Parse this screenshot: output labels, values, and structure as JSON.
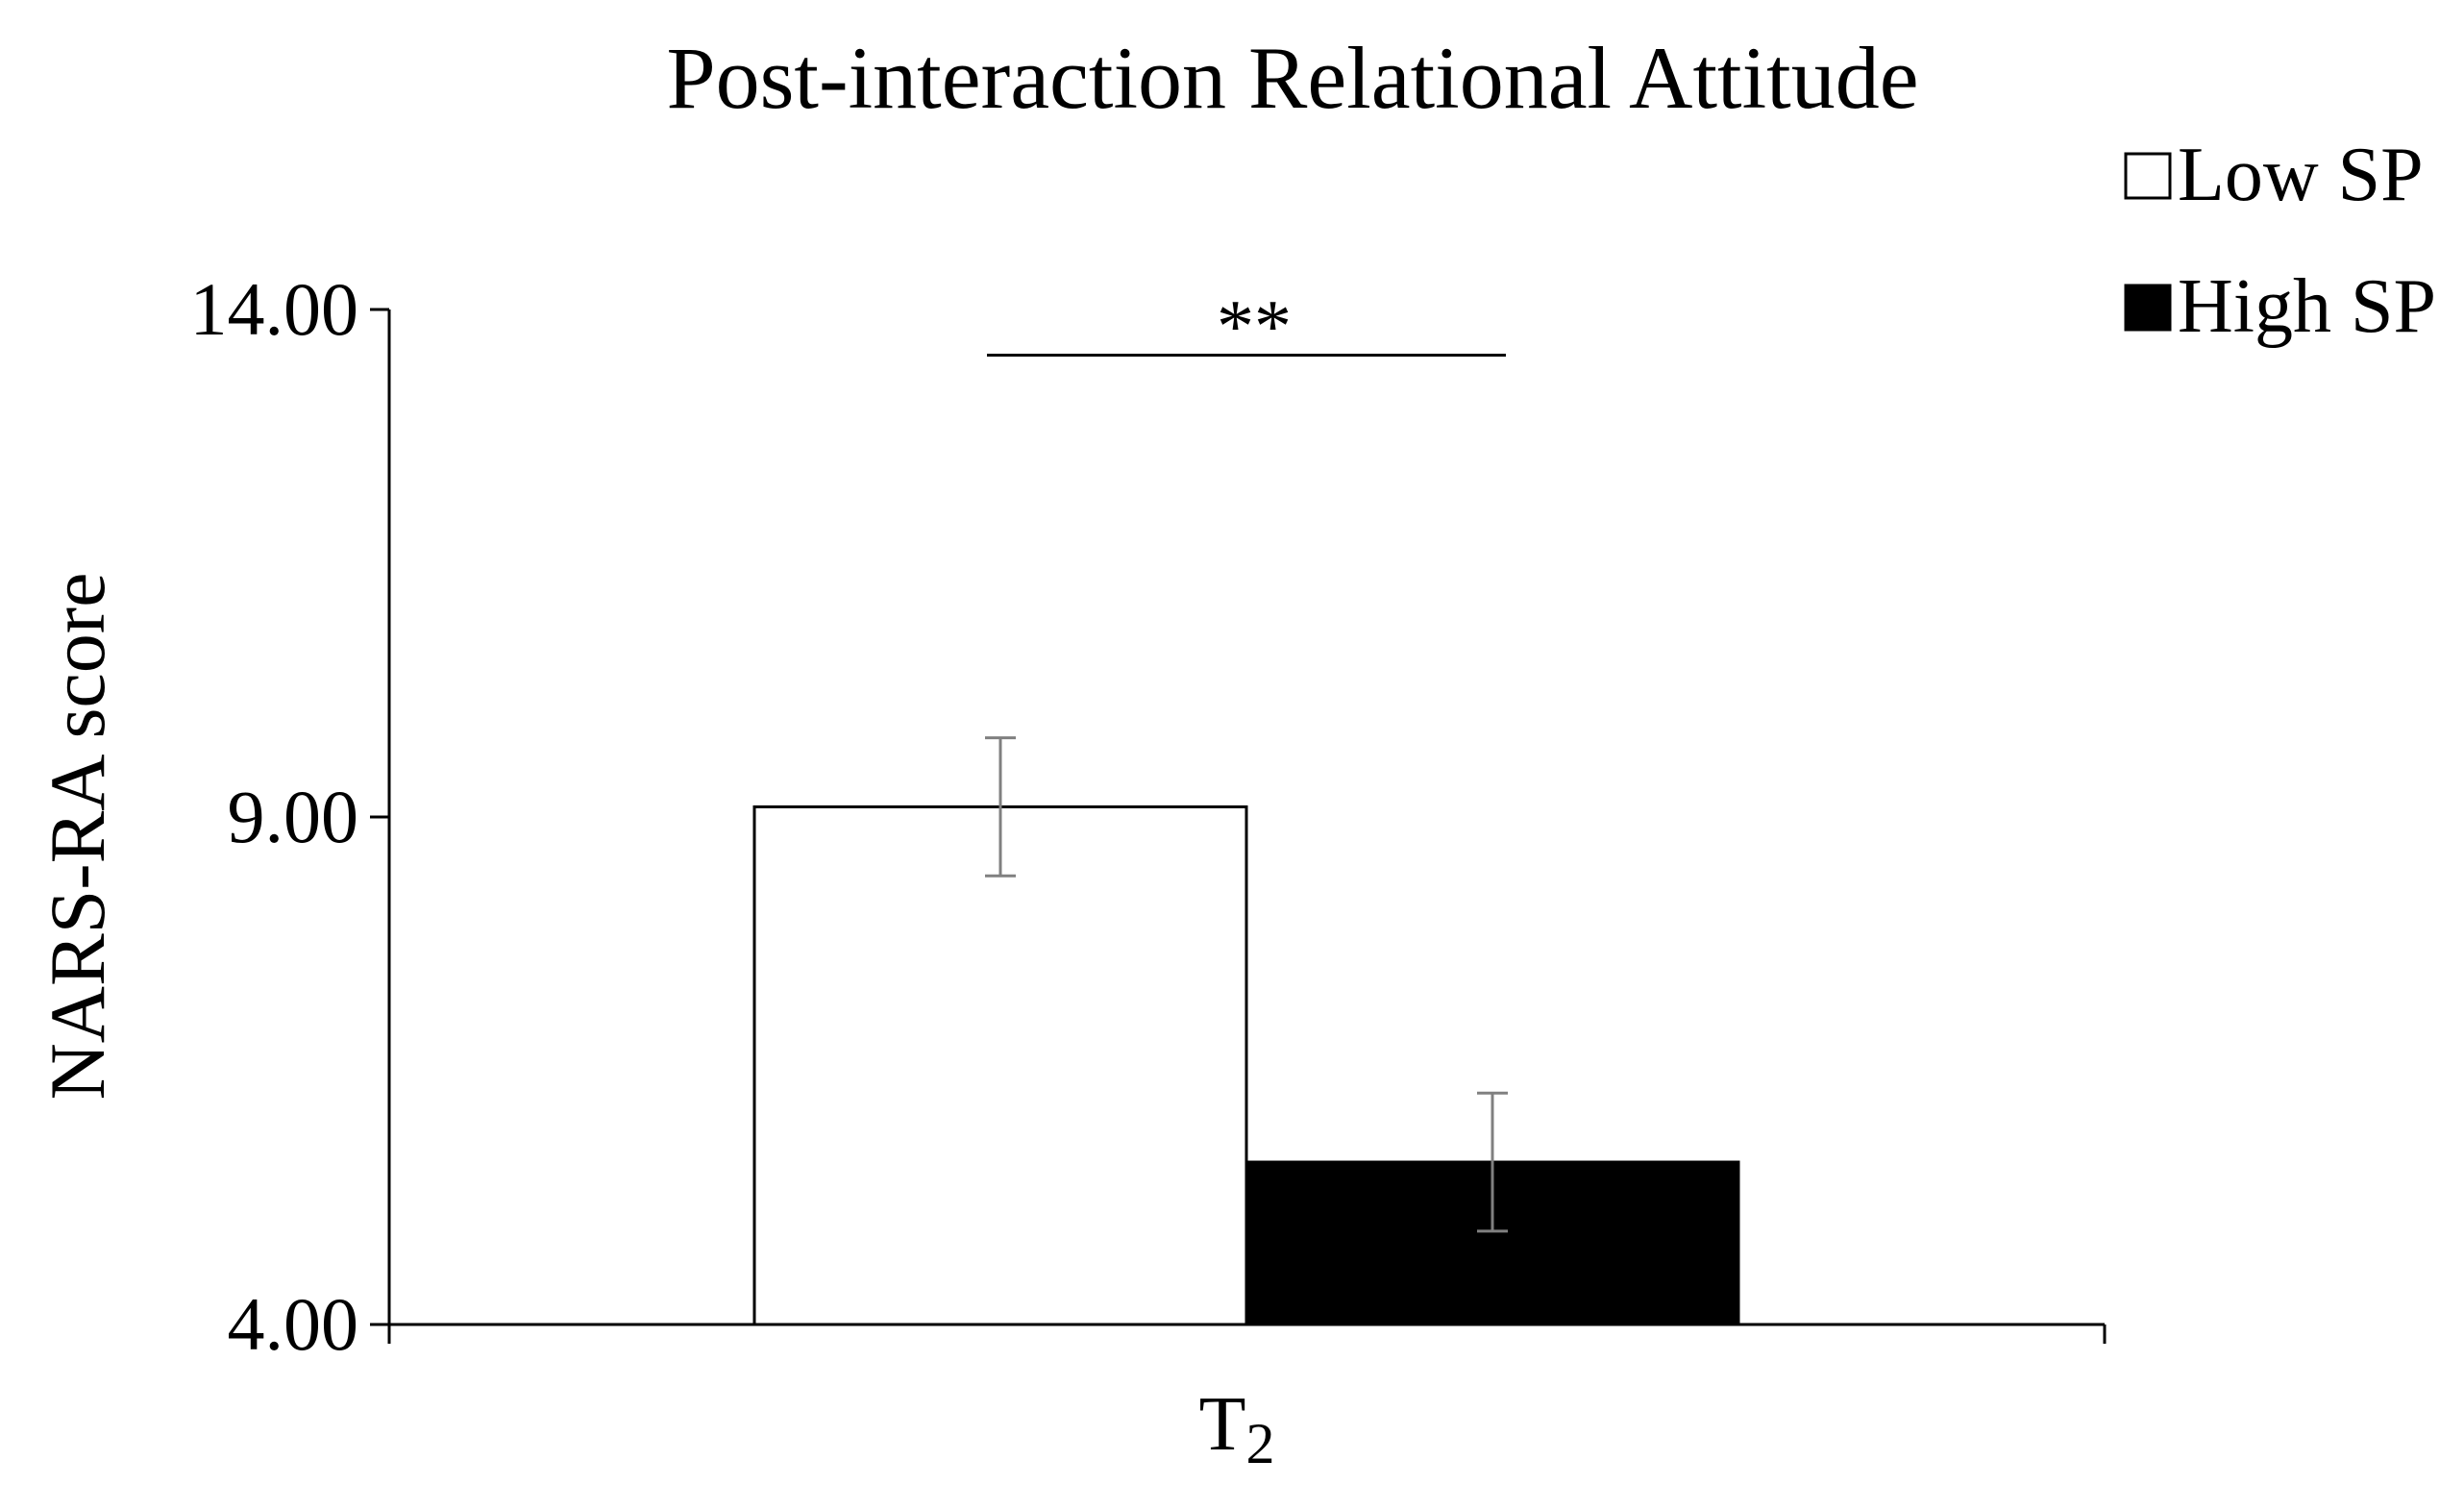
{
  "chart_data": {
    "type": "bar",
    "title": "Post-interaction Relational Attitude",
    "xlabel": "",
    "ylabel": "NARS-RA score",
    "categories": [
      "T2"
    ],
    "category_display": {
      "main": "T",
      "subscript": "2"
    },
    "ylim": [
      4.0,
      14.0
    ],
    "yticks": [
      {
        "value": 4.0,
        "label": "4.00"
      },
      {
        "value": 9.0,
        "label": "9.00"
      },
      {
        "value": 14.0,
        "label": "14.00"
      }
    ],
    "series": [
      {
        "name": "Low SP",
        "values": [
          9.1
        ],
        "error": [
          0.68
        ],
        "fill": "#ffffff"
      },
      {
        "name": "High SP",
        "values": [
          5.6
        ],
        "error": [
          0.68
        ],
        "fill": "#000000"
      }
    ],
    "significance": {
      "label": "**",
      "between": [
        "Low SP",
        "High SP"
      ],
      "y": 13.55
    },
    "legend_position": "top-right",
    "grid": false
  },
  "colors": {
    "axis": "#000000",
    "error_bar": "#808080",
    "background": "#ffffff"
  }
}
